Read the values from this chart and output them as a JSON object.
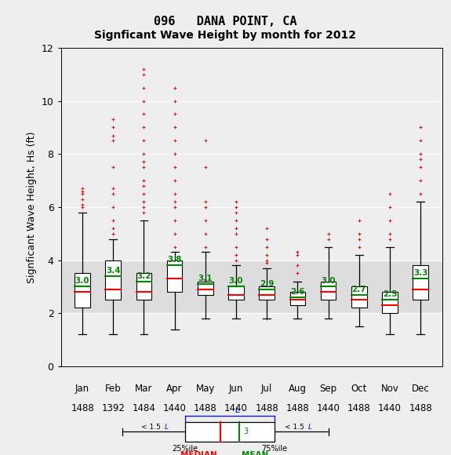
{
  "title1": "096   DANA POINT, CA",
  "title2": "Signficant Wave Height by month for 2012",
  "ylabel": "Signficant Wave Height, Hs (ft)",
  "months": [
    "Jan",
    "Feb",
    "Mar",
    "Apr",
    "May",
    "Jun",
    "Jul",
    "Aug",
    "Sep",
    "Oct",
    "Nov",
    "Dec"
  ],
  "counts": [
    1488,
    1392,
    1484,
    1440,
    1488,
    1440,
    1488,
    1488,
    1440,
    1488,
    1440,
    1488
  ],
  "ylim": [
    0,
    12
  ],
  "yticks": [
    0,
    2,
    4,
    6,
    8,
    10,
    12
  ],
  "box_data": {
    "Jan": {
      "q1": 2.2,
      "median": 2.8,
      "mean": 3.0,
      "q3": 3.5,
      "whislo": 1.2,
      "whishi": 5.8,
      "fliers_low": [],
      "fliers_high": [
        6.0,
        6.1,
        6.3,
        6.5,
        6.6,
        6.7
      ]
    },
    "Feb": {
      "q1": 2.5,
      "median": 2.9,
      "mean": 3.4,
      "q3": 4.0,
      "whislo": 1.2,
      "whishi": 4.8,
      "fliers_low": [],
      "fliers_high": [
        5.0,
        5.2,
        5.5,
        6.0,
        6.5,
        6.7,
        7.5,
        8.5,
        8.7,
        9.0,
        9.3
      ]
    },
    "Mar": {
      "q1": 2.5,
      "median": 2.8,
      "mean": 3.2,
      "q3": 3.5,
      "whislo": 1.2,
      "whishi": 5.5,
      "fliers_low": [],
      "fliers_high": [
        5.8,
        6.0,
        6.2,
        6.5,
        6.8,
        7.0,
        7.5,
        7.7,
        8.0,
        8.5,
        9.0,
        9.5,
        10.0,
        10.5,
        11.0,
        11.2
      ]
    },
    "Apr": {
      "q1": 2.8,
      "median": 3.3,
      "mean": 3.8,
      "q3": 4.0,
      "whislo": 1.4,
      "whishi": 4.3,
      "fliers_low": [],
      "fliers_high": [
        4.5,
        5.0,
        5.5,
        6.0,
        6.2,
        6.5,
        7.0,
        7.5,
        8.0,
        8.5,
        9.0,
        9.5,
        10.0,
        10.5
      ]
    },
    "May": {
      "q1": 2.7,
      "median": 2.9,
      "mean": 3.1,
      "q3": 3.2,
      "whislo": 1.8,
      "whishi": 4.3,
      "fliers_low": [],
      "fliers_high": [
        4.5,
        5.0,
        5.5,
        6.0,
        6.2,
        7.5,
        8.5
      ]
    },
    "Jun": {
      "q1": 2.5,
      "median": 2.7,
      "mean": 3.0,
      "q3": 3.0,
      "whislo": 1.8,
      "whishi": 3.8,
      "fliers_low": [],
      "fliers_high": [
        4.0,
        4.2,
        4.5,
        5.0,
        5.2,
        5.5,
        5.8,
        6.0,
        6.2
      ]
    },
    "Jul": {
      "q1": 2.5,
      "median": 2.7,
      "mean": 2.9,
      "q3": 3.0,
      "whislo": 1.8,
      "whishi": 3.7,
      "fliers_low": [
        1.8
      ],
      "fliers_high": [
        3.9,
        4.0,
        4.2,
        4.5,
        4.8,
        5.2
      ]
    },
    "Aug": {
      "q1": 2.3,
      "median": 2.5,
      "mean": 2.6,
      "q3": 2.8,
      "whislo": 1.8,
      "whishi": 3.2,
      "fliers_low": [],
      "fliers_high": [
        3.5,
        3.8,
        4.2,
        4.3
      ]
    },
    "Sep": {
      "q1": 2.5,
      "median": 2.8,
      "mean": 3.0,
      "q3": 3.2,
      "whislo": 1.8,
      "whishi": 4.5,
      "fliers_low": [],
      "fliers_high": [
        4.8,
        5.0
      ]
    },
    "Oct": {
      "q1": 2.2,
      "median": 2.5,
      "mean": 2.7,
      "q3": 3.0,
      "whislo": 1.5,
      "whishi": 4.2,
      "fliers_low": [],
      "fliers_high": [
        4.5,
        4.8,
        5.0,
        5.5
      ]
    },
    "Nov": {
      "q1": 2.0,
      "median": 2.3,
      "mean": 2.5,
      "q3": 2.8,
      "whislo": 1.2,
      "whishi": 4.5,
      "fliers_low": [],
      "fliers_high": [
        4.8,
        5.0,
        5.5,
        6.0,
        6.5
      ]
    },
    "Dec": {
      "q1": 2.5,
      "median": 2.9,
      "mean": 3.3,
      "q3": 3.8,
      "whislo": 1.2,
      "whishi": 6.2,
      "fliers_low": [],
      "fliers_high": [
        6.5,
        7.0,
        7.5,
        7.8,
        8.0,
        8.5,
        9.0
      ]
    }
  },
  "flier_color": "#ff0000",
  "median_color": "#ff0000",
  "mean_color": "#008800",
  "box_facecolor": "#ffffff",
  "whisker_color": "#000000",
  "bg_color": "#eeeeee",
  "band_color": "#dddddd",
  "box_width": 0.5
}
